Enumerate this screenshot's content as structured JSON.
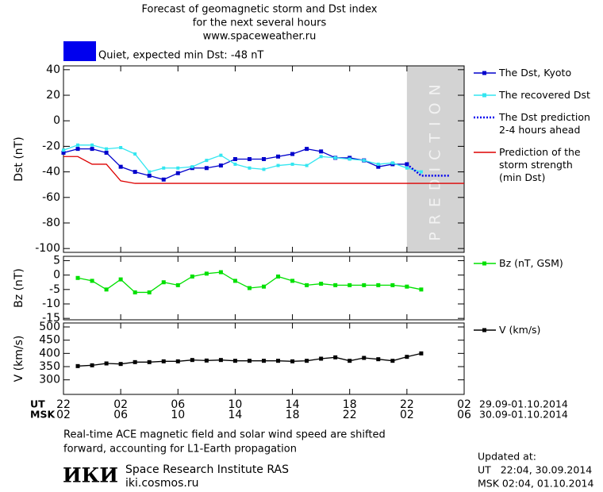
{
  "header": {
    "title_lines": [
      "Forecast of geomagnetic storm and Dst index",
      "for the next several hours",
      "www.spaceweather.ru"
    ],
    "status": {
      "text": "Quiet, expected min Dst: -48 nT",
      "color": "#0000ee"
    }
  },
  "chart_data": [
    {
      "type": "line",
      "ylabel": "Dst (nT)",
      "xlim": [
        0,
        28
      ],
      "ylim": [
        -103,
        43
      ],
      "yticks": [
        40,
        20,
        0,
        -20,
        -40,
        -60,
        -80,
        -100
      ],
      "shaded_region": {
        "from": 24,
        "to": 28,
        "label": "PREDICTION",
        "color": "#d3d3d3"
      },
      "series": [
        {
          "name": "The Dst, Kyoto",
          "color": "#0000cc",
          "marker": "square",
          "dashed": false,
          "x": [
            0,
            1,
            2,
            3,
            4,
            5,
            6,
            7,
            8,
            9,
            10,
            11,
            12,
            13,
            14,
            15,
            16,
            17,
            18,
            19,
            20,
            21,
            22,
            23,
            24
          ],
          "values": [
            -25,
            -22,
            -22,
            -25,
            -36,
            -40,
            -43,
            -46,
            -41,
            -37,
            -37,
            -35,
            -30,
            -30,
            -30,
            -28,
            -26,
            -22,
            -24,
            -29,
            -29,
            -31,
            -36,
            -34,
            -34
          ]
        },
        {
          "name": "The recovered Dst",
          "color": "#33e6f0",
          "marker": "square",
          "dashed": false,
          "x": [
            0,
            1,
            2,
            3,
            4,
            5,
            6,
            7,
            8,
            9,
            10,
            11,
            12,
            13,
            14,
            15,
            16,
            17,
            18,
            19,
            20,
            21,
            22,
            23,
            24,
            25
          ],
          "values": [
            -23,
            -19,
            -19,
            -22,
            -21,
            -26,
            -40,
            -37,
            -37,
            -36,
            -31,
            -27,
            -34,
            -37,
            -38,
            -35,
            -34,
            -35,
            -28,
            -29,
            -30,
            -31,
            -34,
            -33,
            -37,
            -40
          ]
        },
        {
          "name": "The Dst prediction\n2-4 hours ahead",
          "color": "#0000ee",
          "marker": "none",
          "dashed": true,
          "x": [
            24,
            25,
            27
          ],
          "values": [
            -34,
            -43,
            -43
          ]
        },
        {
          "name": "Prediction of the\nstorm strength\n(min Dst)",
          "color": "#dd0000",
          "marker": "none",
          "dashed": false,
          "x": [
            0,
            1,
            2,
            3,
            4,
            5,
            28
          ],
          "values": [
            -28,
            -28,
            -34,
            -34,
            -47,
            -49,
            -49
          ]
        }
      ]
    },
    {
      "type": "line",
      "ylabel": "Bz (nT)",
      "xlim": [
        0,
        28
      ],
      "ylim": [
        -15.5,
        6.5
      ],
      "yticks": [
        5,
        0,
        -5,
        -10,
        -15
      ],
      "series": [
        {
          "name": "Bz (nT, GSM)",
          "color": "#00e000",
          "marker": "square",
          "dashed": false,
          "x": [
            1,
            2,
            3,
            4,
            5,
            6,
            7,
            8,
            9,
            10,
            11,
            12,
            13,
            14,
            15,
            16,
            17,
            18,
            19,
            20,
            21,
            22,
            23,
            24,
            25
          ],
          "values": [
            -1,
            -2,
            -5,
            -1.5,
            -6,
            -6,
            -2.5,
            -3.5,
            -0.5,
            0.5,
            1,
            -2,
            -4.5,
            -4,
            -0.5,
            -2,
            -3.5,
            -3,
            -3.5,
            -3.5,
            -3.5,
            -3.5,
            -3.5,
            -4,
            -5
          ]
        }
      ]
    },
    {
      "type": "line",
      "ylabel": "V (km/s)",
      "xlim": [
        0,
        28
      ],
      "ylim": [
        245,
        515
      ],
      "yticks": [
        500,
        450,
        400,
        350,
        300
      ],
      "xticks": [
        {
          "value": 0,
          "label": "22"
        },
        {
          "value": 4,
          "label": "02"
        },
        {
          "value": 8,
          "label": "06"
        },
        {
          "value": 12,
          "label": "10"
        },
        {
          "value": 16,
          "label": "14"
        },
        {
          "value": 20,
          "label": "18"
        },
        {
          "value": 24,
          "label": "22"
        },
        {
          "value": 28,
          "label": "02"
        }
      ],
      "xticks_msk": [
        {
          "value": 0,
          "label": "02"
        },
        {
          "value": 4,
          "label": "06"
        },
        {
          "value": 8,
          "label": "10"
        },
        {
          "value": 12,
          "label": "14"
        },
        {
          "value": 16,
          "label": "18"
        },
        {
          "value": 20,
          "label": "22"
        },
        {
          "value": 24,
          "label": "02"
        },
        {
          "value": 28,
          "label": "06"
        }
      ],
      "xlabel_ut": "UT",
      "xlabel_msk": "MSK",
      "date_range_ut": "29.09-01.10.2014",
      "date_range_msk": "30.09-01.10.2014",
      "series": [
        {
          "name": "V (km/s)",
          "color": "#000000",
          "marker": "square",
          "dashed": false,
          "x": [
            1,
            2,
            3,
            4,
            5,
            6,
            7,
            8,
            9,
            10,
            11,
            12,
            13,
            14,
            15,
            16,
            17,
            18,
            19,
            20,
            21,
            22,
            23,
            24,
            25
          ],
          "values": [
            352,
            355,
            362,
            360,
            367,
            367,
            370,
            370,
            375,
            373,
            375,
            372,
            372,
            372,
            372,
            370,
            372,
            380,
            385,
            372,
            383,
            378,
            372,
            387,
            400
          ]
        }
      ]
    }
  ],
  "footer": {
    "note_lines": [
      "Real-time ACE magnetic field and solar wind speed are shifted",
      "forward, accounting for L1-Earth propagation"
    ],
    "logo": "ИКИ",
    "institute": "Space Research Institute RAS",
    "website": "iki.cosmos.ru",
    "updated_lines": [
      "Updated at:",
      "UT   22:04, 30.09.2014",
      "MSK 02:04, 01.10.2014"
    ]
  }
}
